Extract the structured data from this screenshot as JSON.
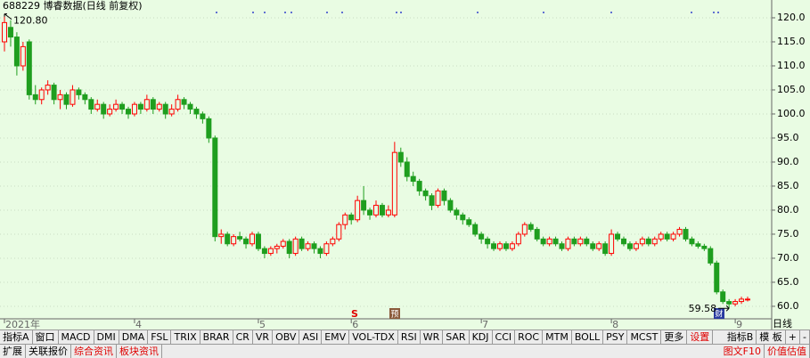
{
  "chart_data": {
    "type": "candlestick",
    "title": "688229 博睿数据(日线 前复权)",
    "period": "日线",
    "up_color": "#ff0000",
    "down_color": "#1f9e1f",
    "grid": true,
    "ylim": [
      57.4,
      123.7
    ],
    "yticks": [
      {
        "value": 60,
        "label": "60.0"
      },
      {
        "value": 65,
        "label": "65.0"
      },
      {
        "value": 70,
        "label": "70.0"
      },
      {
        "value": 75,
        "label": "75.0"
      },
      {
        "value": 80,
        "label": "80.0"
      },
      {
        "value": 85,
        "label": "85.0"
      },
      {
        "value": 90,
        "label": "90.0"
      },
      {
        "value": 95,
        "label": "95.0"
      },
      {
        "value": 100,
        "label": "100.0"
      },
      {
        "value": 105,
        "label": "105.0"
      },
      {
        "value": 110,
        "label": "110.0"
      },
      {
        "value": 115,
        "label": "115.0"
      },
      {
        "value": 120,
        "label": "120.0"
      }
    ],
    "annotations": [
      "120.80",
      "59.58"
    ],
    "events": [
      "S",
      "预",
      "财"
    ],
    "categories": [
      "2021年",
      null,
      null,
      null,
      null,
      null,
      null,
      null,
      null,
      null,
      null,
      null,
      null,
      null,
      null,
      null,
      null,
      null,
      null,
      null,
      null,
      "4",
      null,
      null,
      null,
      null,
      null,
      null,
      null,
      null,
      null,
      null,
      null,
      null,
      null,
      null,
      null,
      null,
      null,
      null,
      null,
      "5",
      null,
      null,
      null,
      null,
      null,
      null,
      null,
      null,
      null,
      null,
      null,
      null,
      null,
      null,
      "6",
      null,
      null,
      null,
      null,
      null,
      null,
      null,
      null,
      null,
      null,
      null,
      null,
      null,
      null,
      null,
      null,
      null,
      null,
      null,
      null,
      "7",
      null,
      null,
      null,
      null,
      null,
      null,
      null,
      null,
      null,
      null,
      null,
      null,
      null,
      null,
      null,
      null,
      null,
      null,
      null,
      null,
      "8",
      null,
      null,
      null,
      null,
      null,
      null,
      null,
      null,
      null,
      null,
      null,
      null,
      null,
      null,
      null,
      null,
      null,
      null,
      null,
      "9",
      null,
      null
    ],
    "ohlc": [
      [
        115,
        120.8,
        113,
        119
      ],
      [
        118,
        119.5,
        114,
        116
      ],
      [
        116,
        117,
        108,
        110
      ],
      [
        110,
        115,
        109,
        114
      ],
      [
        115,
        115.5,
        103,
        104
      ],
      [
        104,
        106,
        102,
        103
      ],
      [
        103,
        105.5,
        102,
        105
      ],
      [
        105,
        107,
        104,
        106
      ],
      [
        106,
        106.5,
        102,
        103
      ],
      [
        103,
        105,
        101,
        104
      ],
      [
        104,
        104.5,
        101,
        102
      ],
      [
        102,
        106,
        101.5,
        105
      ],
      [
        105,
        105.5,
        103,
        104
      ],
      [
        104,
        104.5,
        102,
        103
      ],
      [
        103,
        103.5,
        100,
        101
      ],
      [
        101,
        103,
        100.5,
        102
      ],
      [
        102,
        102.5,
        99,
        100
      ],
      [
        100,
        102,
        99.5,
        101
      ],
      [
        101,
        103,
        100.5,
        102
      ],
      [
        102,
        102.5,
        100,
        101
      ],
      [
        101,
        101.5,
        99,
        100
      ],
      [
        100,
        102.5,
        99.5,
        102
      ],
      [
        102,
        102.5,
        100,
        101
      ],
      [
        101,
        104,
        100.5,
        103
      ],
      [
        103,
        103.5,
        100,
        101
      ],
      [
        101,
        102.5,
        100.5,
        102
      ],
      [
        102,
        102.5,
        99,
        100
      ],
      [
        100,
        102,
        99.5,
        101
      ],
      [
        101,
        104,
        100.5,
        103
      ],
      [
        103,
        103.5,
        101,
        102
      ],
      [
        102,
        102.5,
        100,
        101
      ],
      [
        101,
        101.5,
        99,
        100
      ],
      [
        100,
        100.5,
        98,
        99
      ],
      [
        99,
        99.5,
        94,
        95
      ],
      [
        95,
        95.5,
        73.5,
        74.5
      ],
      [
        74.5,
        76,
        73,
        75
      ],
      [
        75,
        75.5,
        72.5,
        73
      ],
      [
        73,
        75,
        72.5,
        74.5
      ],
      [
        74.5,
        75.5,
        73.5,
        74
      ],
      [
        74,
        74.5,
        72,
        73
      ],
      [
        73,
        75.5,
        72.5,
        75
      ],
      [
        75,
        75.5,
        71.5,
        72
      ],
      [
        72,
        72.5,
        70,
        71
      ],
      [
        71,
        72.5,
        70.5,
        72
      ],
      [
        72,
        73,
        71,
        72.5
      ],
      [
        72.5,
        74,
        72,
        73.5
      ],
      [
        73.5,
        74,
        70,
        71
      ],
      [
        71,
        74.5,
        70.5,
        74
      ],
      [
        74,
        74.5,
        71.5,
        72
      ],
      [
        72,
        73.5,
        71.5,
        73
      ],
      [
        73,
        73.5,
        71,
        72
      ],
      [
        72,
        72.5,
        70,
        71
      ],
      [
        71,
        73.5,
        70.5,
        73
      ],
      [
        73,
        74.5,
        72.5,
        74
      ],
      [
        74,
        77.5,
        73.5,
        77
      ],
      [
        77,
        79.5,
        76,
        79
      ],
      [
        79,
        79.5,
        77,
        78
      ],
      [
        78,
        83,
        77.5,
        82
      ],
      [
        82,
        85,
        79,
        80
      ],
      [
        80,
        80.5,
        78,
        79
      ],
      [
        79,
        82,
        78.5,
        81
      ],
      [
        81,
        81.5,
        78.5,
        79
      ],
      [
        79,
        81,
        78.5,
        80
      ],
      [
        79,
        94.2,
        78.5,
        92
      ],
      [
        92,
        93,
        89,
        90
      ],
      [
        90,
        91,
        86,
        87
      ],
      [
        87,
        88,
        85,
        86
      ],
      [
        86,
        86.5,
        83,
        84
      ],
      [
        84,
        84.5,
        82,
        83
      ],
      [
        83,
        83.5,
        80,
        81
      ],
      [
        81,
        84.5,
        80.5,
        84
      ],
      [
        84,
        84.5,
        81,
        82
      ],
      [
        82,
        82.5,
        79.5,
        80
      ],
      [
        80,
        80.5,
        78,
        79
      ],
      [
        79,
        79.5,
        77,
        78
      ],
      [
        78,
        78.5,
        76.5,
        77
      ],
      [
        77,
        77.5,
        74.5,
        75
      ],
      [
        75,
        75.5,
        73,
        74
      ],
      [
        74,
        74.5,
        72,
        73
      ],
      [
        73,
        73.5,
        71.5,
        72
      ],
      [
        72,
        73.5,
        71.5,
        73
      ],
      [
        73,
        73.5,
        71.5,
        72
      ],
      [
        72,
        73.5,
        71.5,
        73
      ],
      [
        73,
        75.5,
        72.5,
        75
      ],
      [
        75,
        77.5,
        74.5,
        77
      ],
      [
        77,
        77.5,
        75.5,
        76
      ],
      [
        76,
        76.5,
        73.5,
        74
      ],
      [
        74,
        74.5,
        72.5,
        73
      ],
      [
        73,
        74.5,
        72.5,
        74
      ],
      [
        74,
        74.5,
        72.5,
        73
      ],
      [
        73,
        73.5,
        71.5,
        72
      ],
      [
        72,
        74.5,
        71.5,
        74
      ],
      [
        74,
        74.5,
        72.5,
        73
      ],
      [
        73,
        74.5,
        72.5,
        74
      ],
      [
        74,
        74.5,
        72.5,
        73
      ],
      [
        73,
        73.5,
        71.5,
        72
      ],
      [
        72,
        73.5,
        71.5,
        73
      ],
      [
        73,
        73.5,
        70.5,
        71
      ],
      [
        71,
        76,
        70.5,
        75
      ],
      [
        75,
        75.5,
        73.5,
        74
      ],
      [
        74,
        74.5,
        72.5,
        73
      ],
      [
        73,
        73.5,
        71.5,
        72
      ],
      [
        72,
        73.5,
        71.5,
        73
      ],
      [
        73,
        74.5,
        72.5,
        74
      ],
      [
        74,
        74.5,
        72.5,
        73
      ],
      [
        73,
        74.5,
        72.5,
        74
      ],
      [
        74,
        75.5,
        73.5,
        75
      ],
      [
        75,
        75.5,
        73.5,
        74
      ],
      [
        74,
        75.5,
        73.5,
        75
      ],
      [
        75,
        76.5,
        74.5,
        76
      ],
      [
        76,
        76.5,
        73.5,
        74
      ],
      [
        74,
        74.5,
        72.5,
        73
      ],
      [
        73,
        73.5,
        72,
        72.5
      ],
      [
        72.5,
        73,
        71.5,
        72
      ],
      [
        72,
        72.5,
        68.5,
        69
      ],
      [
        69,
        69.5,
        62.5,
        63
      ],
      [
        63,
        63.5,
        60.5,
        61
      ],
      [
        61,
        61.5,
        59.58,
        60.5
      ],
      [
        60.5,
        61.5,
        60,
        61
      ],
      [
        61,
        62,
        60.5,
        61.5
      ],
      [
        61.5,
        62,
        61,
        61.5
      ]
    ]
  },
  "toolbar": {
    "row1": [
      "指标A",
      "窗口",
      "MACD",
      "DMI",
      "DMA",
      "FSL",
      "TRIX",
      "BRAR",
      "CR",
      "VR",
      "OBV",
      "ASI",
      "EMV",
      "VOL-TDX",
      "RSI",
      "WR",
      "SAR",
      "KDJ",
      "CCI",
      "ROC",
      "MTM",
      "BOLL",
      "PSY",
      "MCST",
      "更多",
      {
        "label": "设置",
        "color": "#e00000"
      }
    ],
    "row1_right": [
      "指标B",
      "模 板",
      "+",
      "-"
    ],
    "row2": [
      "扩展",
      "关联报价",
      {
        "label": "综合资讯",
        "color": "#e00000"
      },
      {
        "label": "板块资讯",
        "color": "#e00000"
      }
    ],
    "row2_right": [
      {
        "label": "图文F10",
        "color": "#e00000"
      },
      {
        "label": "价值估值",
        "color": "#e00000"
      }
    ]
  }
}
